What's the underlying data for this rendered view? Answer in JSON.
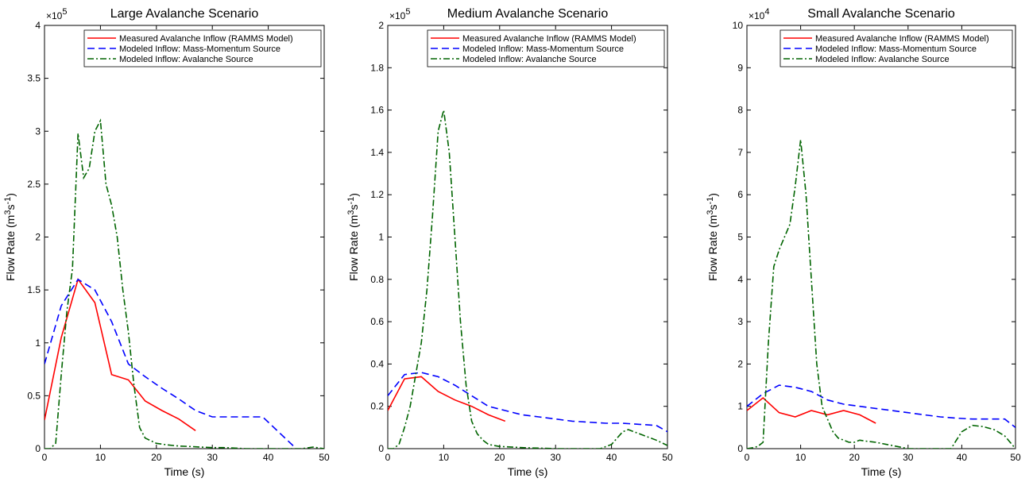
{
  "chart_data": [
    {
      "type": "line",
      "title": "Large Avalanche Scenario",
      "xlabel": "Time (s)",
      "ylabel_base": "Flow Rate (m",
      "ylabel_sup1": "3",
      "ylabel_mid": "s",
      "ylabel_sup2": "-1",
      "ylabel_end": ")",
      "xlim": [
        0,
        50
      ],
      "ylim": [
        0,
        400000
      ],
      "x_ticks": [
        0,
        10,
        20,
        30,
        40,
        50
      ],
      "x_tick_labels": [
        "0",
        "10",
        "20",
        "30",
        "40",
        "50"
      ],
      "y_ticks": [
        0,
        50000,
        100000,
        150000,
        200000,
        250000,
        300000,
        350000,
        400000
      ],
      "y_tick_labels": [
        "0",
        "0.5",
        "1",
        "1.5",
        "2",
        "2.5",
        "3",
        "3.5",
        "4"
      ],
      "exponent_base": "×10",
      "exponent_power": "5",
      "legend_position": "top-right",
      "series": [
        {
          "name": "Measured Avalanche Inflow (RAMMS Model)",
          "color": "#ff0000",
          "style": "solid",
          "x": [
            0,
            3,
            6,
            9,
            12,
            15,
            18,
            21,
            24,
            27
          ],
          "y": [
            27000,
            105000,
            160000,
            138000,
            70000,
            65000,
            45000,
            36000,
            28000,
            17000
          ]
        },
        {
          "name": "Modeled Inflow: Mass-Momentum Source",
          "color": "#0000ff",
          "style": "dashed",
          "x": [
            0,
            3,
            6,
            9,
            12,
            15,
            18,
            21,
            24,
            27,
            30,
            33,
            36,
            39,
            42,
            45
          ],
          "y": [
            80000,
            135000,
            160000,
            150000,
            120000,
            80000,
            68000,
            57000,
            47000,
            36000,
            30000,
            30000,
            30000,
            30000,
            15000,
            0
          ]
        },
        {
          "name": "Modeled Inflow: Avalanche Source",
          "color": "#006400",
          "style": "dashdot",
          "x": [
            0,
            1,
            2,
            3,
            4,
            5,
            6,
            7,
            8,
            9,
            10,
            11,
            12,
            13,
            14,
            15,
            16,
            17,
            18,
            20,
            22,
            24,
            26,
            28,
            30,
            32,
            34,
            36,
            38,
            40,
            42,
            44,
            46,
            48,
            50
          ],
          "y": [
            0,
            0,
            5000,
            70000,
            130000,
            170000,
            298000,
            256000,
            265000,
            300000,
            310000,
            250000,
            230000,
            200000,
            150000,
            110000,
            60000,
            20000,
            10000,
            5000,
            3500,
            2500,
            2000,
            1500,
            1000,
            1000,
            500,
            0,
            0,
            0,
            0,
            0,
            0,
            1500,
            0
          ]
        }
      ]
    },
    {
      "type": "line",
      "title": "Medium Avalanche Scenario",
      "xlabel": "Time (s)",
      "ylabel_base": "Flow Rate (m",
      "ylabel_sup1": "3",
      "ylabel_mid": "s",
      "ylabel_sup2": "-1",
      "ylabel_end": ")",
      "xlim": [
        0,
        50
      ],
      "ylim": [
        0,
        200000
      ],
      "x_ticks": [
        0,
        10,
        20,
        30,
        40,
        50
      ],
      "x_tick_labels": [
        "0",
        "10",
        "20",
        "30",
        "40",
        "50"
      ],
      "y_ticks": [
        0,
        20000,
        40000,
        60000,
        80000,
        100000,
        120000,
        140000,
        160000,
        180000,
        200000
      ],
      "y_tick_labels": [
        "0",
        "0.2",
        "0.4",
        "0.6",
        "0.8",
        "1",
        "1.2",
        "1.4",
        "1.6",
        "1.8",
        "2"
      ],
      "exponent_base": "×10",
      "exponent_power": "5",
      "legend_position": "top-right",
      "series": [
        {
          "name": "Measured Avalanche Inflow (RAMMS Model)",
          "color": "#ff0000",
          "style": "solid",
          "x": [
            0,
            3,
            6,
            9,
            12,
            15,
            18,
            21
          ],
          "y": [
            18000,
            33000,
            34000,
            27000,
            23000,
            20000,
            16000,
            13000
          ]
        },
        {
          "name": "Modeled Inflow: Mass-Momentum Source",
          "color": "#0000ff",
          "style": "dashed",
          "x": [
            0,
            3,
            6,
            9,
            12,
            15,
            18,
            21,
            24,
            27,
            30,
            33,
            36,
            39,
            42,
            45,
            48,
            50
          ],
          "y": [
            25000,
            35000,
            36000,
            34000,
            30000,
            25000,
            20000,
            18000,
            16000,
            15000,
            14000,
            13000,
            12500,
            12000,
            12000,
            11500,
            11000,
            8000
          ]
        },
        {
          "name": "Modeled Inflow: Avalanche Source",
          "color": "#006400",
          "style": "dashdot",
          "x": [
            0,
            1,
            2,
            3,
            4,
            5,
            6,
            7,
            8,
            9,
            10,
            11,
            12,
            13,
            14,
            15,
            16,
            17,
            18,
            20,
            22,
            24,
            26,
            28,
            30,
            32,
            34,
            36,
            38,
            40,
            41,
            42,
            43,
            44,
            46,
            48,
            50
          ],
          "y": [
            0,
            0,
            2000,
            10000,
            20000,
            35000,
            50000,
            75000,
            110000,
            150000,
            160000,
            140000,
            100000,
            60000,
            30000,
            13000,
            7000,
            4000,
            2000,
            1000,
            800,
            500,
            300,
            200,
            0,
            0,
            0,
            0,
            0,
            2000,
            5000,
            8000,
            9000,
            8000,
            6000,
            4000,
            1500
          ]
        }
      ]
    },
    {
      "type": "line",
      "title": "Small Avalanche Scenario",
      "xlabel": "Time (s)",
      "ylabel_base": "Flow Rate (m",
      "ylabel_sup1": "3",
      "ylabel_mid": "s",
      "ylabel_sup2": "-1",
      "ylabel_end": ")",
      "xlim": [
        0,
        50
      ],
      "ylim": [
        0,
        100000
      ],
      "x_ticks": [
        0,
        10,
        20,
        30,
        40,
        50
      ],
      "x_tick_labels": [
        "0",
        "10",
        "20",
        "30",
        "40",
        "50"
      ],
      "y_ticks": [
        0,
        10000,
        20000,
        30000,
        40000,
        50000,
        60000,
        70000,
        80000,
        90000,
        100000
      ],
      "y_tick_labels": [
        "0",
        "1",
        "2",
        "3",
        "4",
        "5",
        "6",
        "7",
        "8",
        "9",
        "10"
      ],
      "exponent_base": "×10",
      "exponent_power": "4",
      "legend_position": "top-right",
      "series": [
        {
          "name": "Measured Avalanche Inflow (RAMMS Model)",
          "color": "#ff0000",
          "style": "solid",
          "x": [
            0,
            3,
            6,
            9,
            12,
            15,
            18,
            21,
            24
          ],
          "y": [
            9000,
            12000,
            8500,
            7500,
            9000,
            8000,
            9000,
            8000,
            6000
          ]
        },
        {
          "name": "Modeled Inflow: Mass-Momentum Source",
          "color": "#0000ff",
          "style": "dashed",
          "x": [
            0,
            3,
            6,
            9,
            12,
            15,
            18,
            21,
            24,
            27,
            30,
            33,
            36,
            39,
            42,
            45,
            48,
            50
          ],
          "y": [
            10000,
            13000,
            15000,
            14500,
            13500,
            11500,
            10500,
            10000,
            9500,
            9000,
            8500,
            8000,
            7500,
            7200,
            7000,
            7000,
            7000,
            5000
          ]
        },
        {
          "name": "Modeled Inflow: Avalanche Source",
          "color": "#006400",
          "style": "dashdot",
          "x": [
            0,
            1,
            2,
            3,
            4,
            5,
            6,
            7,
            8,
            9,
            10,
            11,
            12,
            13,
            14,
            15,
            16,
            17,
            18,
            19,
            20,
            21,
            22,
            24,
            26,
            28,
            30,
            32,
            34,
            36,
            38,
            40,
            42,
            44,
            46,
            48,
            50
          ],
          "y": [
            0,
            200,
            500,
            1500,
            25000,
            43000,
            47000,
            50000,
            53000,
            62000,
            73000,
            60000,
            40000,
            20000,
            10000,
            7000,
            4000,
            2500,
            2000,
            1500,
            1500,
            2000,
            1800,
            1500,
            1000,
            500,
            0,
            0,
            0,
            0,
            0,
            4000,
            5500,
            5200,
            4500,
            3000,
            0
          ]
        }
      ]
    }
  ]
}
